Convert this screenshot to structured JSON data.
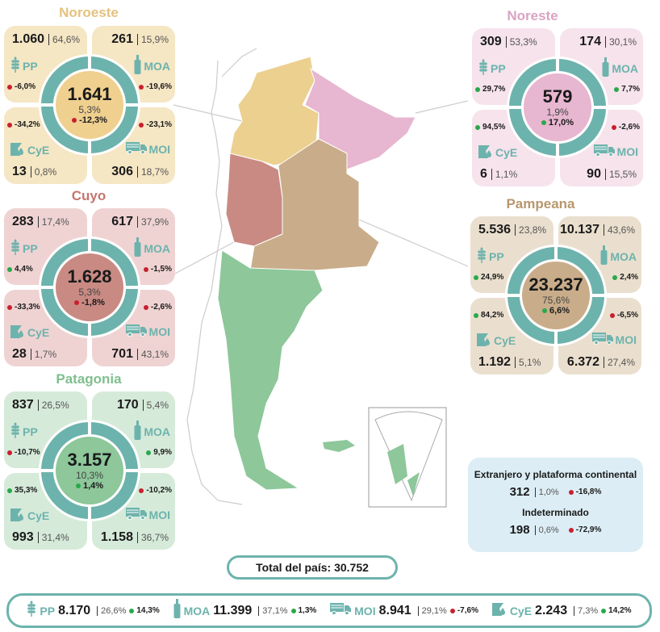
{
  "colors": {
    "teal": "#6db3ad",
    "up": "#2aa84a",
    "down": "#c8202f"
  },
  "regions": [
    {
      "id": "noroeste",
      "name": "Noroeste",
      "title_color": "#e4c27f",
      "bg": "#f5e6c4",
      "center": "#efd08f",
      "total": "1.641",
      "pct": "5,3%",
      "change": "-12,3%",
      "trend": "down",
      "pp": {
        "label": "PP",
        "value": "1.060",
        "pct": "64,6%",
        "change": "-6,0%",
        "trend": "down"
      },
      "moa": {
        "label": "MOA",
        "value": "261",
        "pct": "15,9%",
        "change": "-19,6%",
        "trend": "down"
      },
      "cye": {
        "label": "CyE",
        "value": "13",
        "pct": "0,8%",
        "change": "-34,2%",
        "trend": "down"
      },
      "moi": {
        "label": "MOI",
        "value": "306",
        "pct": "18,7%",
        "change": "-23,1%",
        "trend": "down"
      }
    },
    {
      "id": "cuyo",
      "name": "Cuyo",
      "title_color": "#c4766f",
      "bg": "#efd3d3",
      "center": "#c98a83",
      "total": "1.628",
      "pct": "5,3%",
      "change": "-1,8%",
      "trend": "down",
      "pp": {
        "label": "PP",
        "value": "283",
        "pct": "17,4%",
        "change": "4,4%",
        "trend": "up"
      },
      "moa": {
        "label": "MOA",
        "value": "617",
        "pct": "37,9%",
        "change": "-1,5%",
        "trend": "down"
      },
      "cye": {
        "label": "CyE",
        "value": "28",
        "pct": "1,7%",
        "change": "-33,3%",
        "trend": "down"
      },
      "moi": {
        "label": "MOI",
        "value": "701",
        "pct": "43,1%",
        "change": "-2,6%",
        "trend": "down"
      }
    },
    {
      "id": "patagonia",
      "name": "Patagonia",
      "title_color": "#7fbf8f",
      "bg": "#d6ead9",
      "center": "#8dc79a",
      "total": "3.157",
      "pct": "10,3%",
      "change": "1,4%",
      "trend": "up",
      "pp": {
        "label": "PP",
        "value": "837",
        "pct": "26,5%",
        "change": "-10,7%",
        "trend": "down"
      },
      "moa": {
        "label": "MOA",
        "value": "170",
        "pct": "5,4%",
        "change": "9,9%",
        "trend": "up"
      },
      "cye": {
        "label": "CyE",
        "value": "993",
        "pct": "31,4%",
        "change": "35,3%",
        "trend": "up"
      },
      "moi": {
        "label": "MOI",
        "value": "1.158",
        "pct": "36,7%",
        "change": "-10,2%",
        "trend": "down"
      }
    },
    {
      "id": "noreste",
      "name": "Noreste",
      "title_color": "#d9a3c2",
      "bg": "#f6e3ec",
      "center": "#e7b6d0",
      "total": "579",
      "pct": "1,9%",
      "change": "17,0%",
      "trend": "up",
      "pp": {
        "label": "PP",
        "value": "309",
        "pct": "53,3%",
        "change": "29,7%",
        "trend": "up"
      },
      "moa": {
        "label": "MOA",
        "value": "174",
        "pct": "30,1%",
        "change": "7,7%",
        "trend": "up"
      },
      "cye": {
        "label": "CyE",
        "value": "6",
        "pct": "1,1%",
        "change": "94,5%",
        "trend": "up"
      },
      "moi": {
        "label": "MOI",
        "value": "90",
        "pct": "15,5%",
        "change": "-2,6%",
        "trend": "down"
      }
    },
    {
      "id": "pampeana",
      "name": "Pampeana",
      "title_color": "#b8976c",
      "bg": "#eadfce",
      "center": "#c9ad8a",
      "total": "23.237",
      "pct": "75,6%",
      "change": "6,6%",
      "trend": "up",
      "pp": {
        "label": "PP",
        "value": "5.536",
        "pct": "23,8%",
        "change": "24,9%",
        "trend": "up"
      },
      "moa": {
        "label": "MOA",
        "value": "10.137",
        "pct": "43,6%",
        "change": "2,4%",
        "trend": "up"
      },
      "cye": {
        "label": "CyE",
        "value": "1.192",
        "pct": "5,1%",
        "change": "84,2%",
        "trend": "up"
      },
      "moi": {
        "label": "MOI",
        "value": "6.372",
        "pct": "27,4%",
        "change": "-6,5%",
        "trend": "down"
      }
    }
  ],
  "other": [
    {
      "title": "Extranjero y plataforma continental",
      "value": "312",
      "pct": "1,0%",
      "change": "-16,8%",
      "trend": "down"
    },
    {
      "title": "Indeterminado",
      "value": "198",
      "pct": "0,6%",
      "change": "-72,9%",
      "trend": "down"
    }
  ],
  "total_label": "Total del país: 30.752",
  "summary": [
    {
      "key": "pp",
      "label": "PP",
      "value": "8.170",
      "pct": "26,6%",
      "change": "14,3%",
      "trend": "up"
    },
    {
      "key": "moa",
      "label": "MOA",
      "value": "11.399",
      "pct": "37,1%",
      "change": "1,3%",
      "trend": "up"
    },
    {
      "key": "moi",
      "label": "MOI",
      "value": "8.941",
      "pct": "29,1%",
      "change": "-7,6%",
      "trend": "down"
    },
    {
      "key": "cye",
      "label": "CyE",
      "value": "2.243",
      "pct": "7,3%",
      "change": "14,2%",
      "trend": "up"
    }
  ]
}
